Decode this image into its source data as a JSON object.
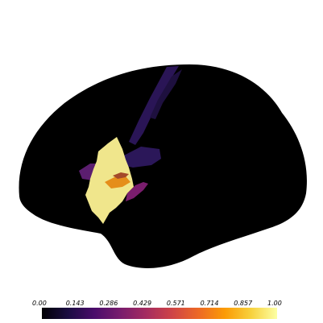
{
  "colorbar": {
    "colormap": "inferno",
    "min": 0.0,
    "max": 1.0,
    "tick_labels": [
      "0.00",
      "0.143",
      "0.286",
      "0.429",
      "0.571",
      "0.714",
      "0.857",
      "1.00"
    ],
    "gradient_stops": [
      "#000004",
      "#1b0c41",
      "#4a0c6b",
      "#781c6d",
      "#a52c60",
      "#cf4446",
      "#ed6925",
      "#fb9b06",
      "#f7d13d",
      "#fcffa4"
    ]
  },
  "colors": {
    "background": "#ffffff",
    "surface": "#000000",
    "overlay_high": "#f0e68c",
    "overlay_mid": "#e58e1a",
    "overlay_purple": "#5a1c6e",
    "overlay_dark": "#2a1556"
  }
}
